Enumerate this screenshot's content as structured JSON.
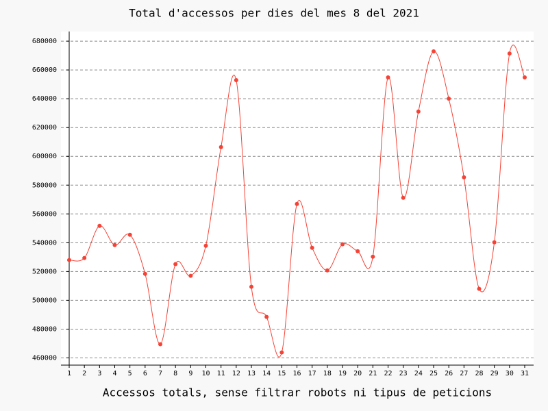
{
  "chart_data": {
    "type": "line",
    "title": "Total d'accessos per dies del mes 8 del 2021",
    "x_label": "Accessos totals, sense filtrar robots ni tipus de peticions",
    "categories": [
      "1",
      "2",
      "3",
      "4",
      "5",
      "6",
      "7",
      "8",
      "9",
      "10",
      "11",
      "12",
      "13",
      "14",
      "15",
      "16",
      "17",
      "18",
      "19",
      "20",
      "21",
      "22",
      "23",
      "24",
      "25",
      "26",
      "27",
      "28",
      "29",
      "30",
      "31"
    ],
    "values": [
      528000,
      529400,
      551700,
      538400,
      545500,
      518400,
      469500,
      525100,
      517000,
      537900,
      606400,
      652900,
      509400,
      488500,
      463800,
      566900,
      536500,
      520800,
      538900,
      534100,
      530300,
      654800,
      571200,
      631100,
      672900,
      640100,
      585400,
      508000,
      540300,
      671400,
      654800
    ],
    "color": "#f44336",
    "ylim": [
      455000,
      686700
    ],
    "yticks": [
      460000,
      480000,
      500000,
      520000,
      540000,
      560000,
      580000,
      600000,
      620000,
      640000,
      660000,
      680000
    ],
    "grid": true,
    "smooth": true
  }
}
